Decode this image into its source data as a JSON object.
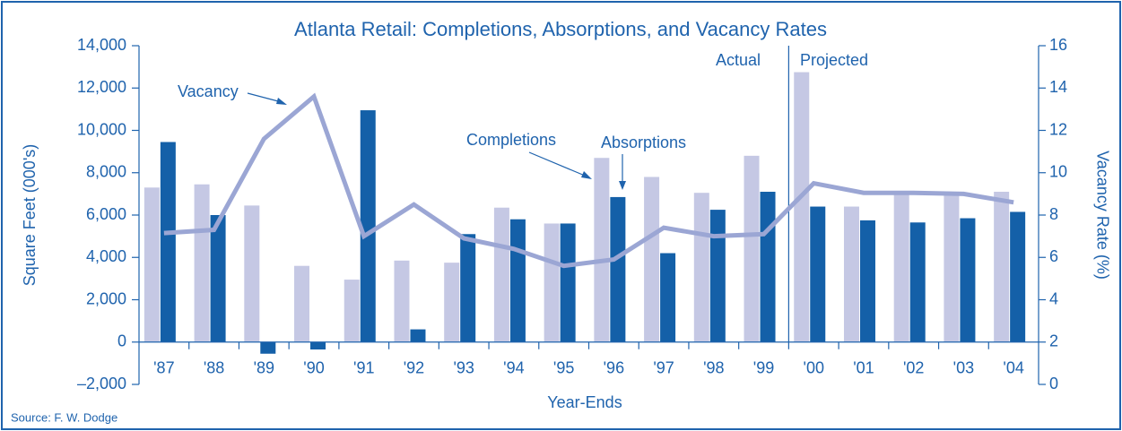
{
  "chart_data": {
    "type": "bar",
    "title": "Atlanta Retail: Completions, Absorptions, and Vacancy Rates",
    "x_label": "Year-Ends",
    "y_label": "Square Feet (000's)",
    "y2_label": "Vacancy Rate (%)",
    "source": "Source: F. W. Dodge",
    "annotations": [
      "Actual",
      "Projected"
    ],
    "categories": [
      "'87",
      "'88",
      "'89",
      "'90",
      "'91",
      "'92",
      "'93",
      "'94",
      "'95",
      "'96",
      "'97",
      "'98",
      "'99",
      "'00",
      "'01",
      "'02",
      "'03",
      "'04"
    ],
    "series": [
      {
        "name": "Completions",
        "type": "bar",
        "color": "#c5c8e4",
        "values": [
          7300,
          7450,
          6450,
          3600,
          2950,
          3850,
          3750,
          6350,
          5600,
          8700,
          7800,
          7050,
          8800,
          12750,
          6400,
          7050,
          7000,
          7100
        ]
      },
      {
        "name": "Absorptions",
        "type": "bar",
        "color": "#1460a8",
        "values": [
          9450,
          6000,
          -550,
          -350,
          10950,
          600,
          5100,
          5800,
          5600,
          6850,
          4200,
          6250,
          7100,
          6400,
          5750,
          5650,
          5850,
          6150
        ]
      },
      {
        "name": "Vacancy",
        "type": "line",
        "axis": "y2",
        "color": "#9ba6d4",
        "values": [
          7.15,
          7.3,
          11.6,
          13.6,
          7.0,
          8.5,
          6.9,
          6.4,
          5.6,
          5.9,
          7.4,
          7.0,
          7.1,
          9.5,
          9.05,
          9.05,
          9.0,
          8.6
        ]
      }
    ],
    "ylim": [
      -2000,
      14000
    ],
    "yticks": [
      {
        "value": -2000,
        "label": "–2,000"
      },
      0,
      {
        "value": 2000,
        "label": "2,000"
      },
      {
        "value": 4000,
        "label": "4,000"
      },
      {
        "value": 6000,
        "label": "6,000"
      },
      {
        "value": 8000,
        "label": "8,000"
      },
      {
        "value": 10000,
        "label": "10,000"
      },
      {
        "value": 12000,
        "label": "12,000"
      },
      {
        "value": 14000,
        "label": "14,000"
      }
    ],
    "y2lim": [
      0,
      16
    ],
    "y2ticks": [
      0,
      2,
      4,
      6,
      8,
      10,
      12,
      14,
      16
    ],
    "grid": false
  }
}
